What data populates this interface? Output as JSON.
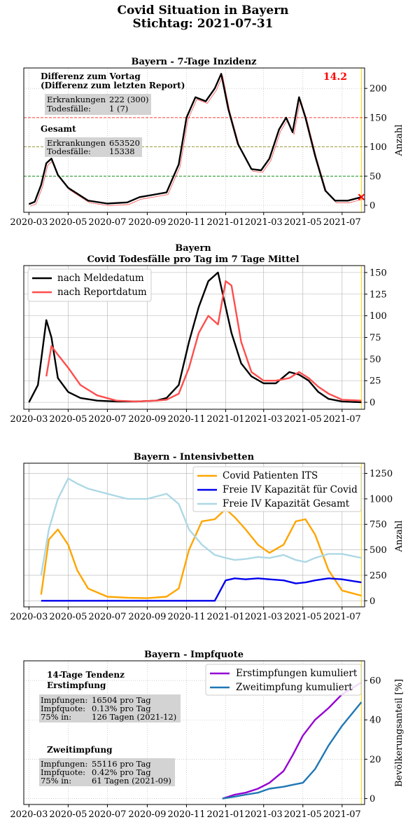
{
  "figure": {
    "title_line1": "Covid Situation in Bayern",
    "title_line2": "Stichtag: 2021-07-31"
  },
  "x_ticks": [
    "2020-03",
    "2020-05",
    "2020-07",
    "2020-09",
    "2020-11",
    "2021-01",
    "2021-03",
    "2021-05",
    "2021-07"
  ],
  "colors": {
    "black": "#000000",
    "red": "#ff4d4d",
    "orange": "#ffa500",
    "blue": "#0000ee",
    "lightblue": "#add8e6",
    "purple": "#9400d3",
    "steelblue": "#1f77b4",
    "marker_line": "#ffd700",
    "grid": "#b0b0b0",
    "annbox": "#d3d3d3"
  },
  "chart_data": [
    {
      "type": "line",
      "title": "Bayern - 7-Tage Inzidenz",
      "ylabel": "Anzahl",
      "ylim": [
        -12,
        235
      ],
      "yticks": [
        "0",
        "50",
        "100",
        "150",
        "200"
      ],
      "highlight_value": "14.2",
      "reference_lines": [
        {
          "y": 50,
          "color": "green",
          "style": "dashed"
        },
        {
          "y": 100,
          "color": "olive",
          "style": "dashed"
        },
        {
          "y": 150,
          "color": "red",
          "style": "dashed"
        }
      ],
      "x": [
        "2020-03-01",
        "2020-03-10",
        "2020-03-20",
        "2020-03-28",
        "2020-04-05",
        "2020-04-15",
        "2020-05-01",
        "2020-06-01",
        "2020-07-01",
        "2020-08-01",
        "2020-08-20",
        "2020-09-10",
        "2020-10-01",
        "2020-10-20",
        "2020-11-01",
        "2020-11-15",
        "2020-12-01",
        "2020-12-15",
        "2020-12-25",
        "2021-01-05",
        "2021-01-20",
        "2021-02-10",
        "2021-02-25",
        "2021-03-10",
        "2021-03-25",
        "2021-04-05",
        "2021-04-15",
        "2021-04-25",
        "2021-05-05",
        "2021-05-20",
        "2021-06-05",
        "2021-06-20",
        "2021-07-10",
        "2021-07-31"
      ],
      "series": [
        {
          "values": [
            2,
            6,
            35,
            72,
            80,
            52,
            30,
            8,
            3,
            5,
            14,
            18,
            22,
            70,
            150,
            185,
            178,
            200,
            225,
            165,
            105,
            62,
            60,
            80,
            130,
            150,
            125,
            185,
            150,
            85,
            25,
            8,
            8,
            14
          ]
        }
      ],
      "annotations": {
        "diff_title_1": "Differenz zum Vortag",
        "diff_title_2": "(Differenz zum letzten Report)",
        "diff_label_1": "Erkrankungen",
        "diff_value_1": "222 (300)",
        "diff_label_2": "Todesfälle:",
        "diff_value_2": "1 (7)",
        "total_title": "Gesamt",
        "total_label_1": "Erkrankungen",
        "total_value_1": "653520",
        "total_label_2": "Todesfälle:",
        "total_value_2": "15338"
      }
    },
    {
      "type": "line",
      "title_line1": "Bayern",
      "title_line2": "Covid Todesfälle pro Tag im 7 Tage Mittel",
      "ylim": [
        -8,
        158
      ],
      "yticks": [
        "0",
        "25",
        "50",
        "75",
        "100",
        "125",
        "150"
      ],
      "x": [
        "2020-03-01",
        "2020-03-15",
        "2020-03-28",
        "2020-04-05",
        "2020-04-15",
        "2020-05-01",
        "2020-05-20",
        "2020-06-15",
        "2020-07-15",
        "2020-08-15",
        "2020-09-15",
        "2020-10-01",
        "2020-10-20",
        "2020-11-05",
        "2020-11-20",
        "2020-12-05",
        "2020-12-20",
        "2021-01-01",
        "2021-01-10",
        "2021-01-25",
        "2021-02-10",
        "2021-03-01",
        "2021-03-20",
        "2021-04-10",
        "2021-04-25",
        "2021-05-10",
        "2021-05-25",
        "2021-06-10",
        "2021-07-01",
        "2021-07-31"
      ],
      "series": [
        {
          "name": "nach Meldedatum",
          "values": [
            0,
            20,
            95,
            75,
            28,
            12,
            5,
            2,
            1,
            1,
            2,
            5,
            20,
            70,
            110,
            140,
            150,
            110,
            80,
            45,
            30,
            22,
            22,
            35,
            32,
            25,
            12,
            4,
            1,
            0
          ]
        },
        {
          "name": "nach Reportdatum",
          "values": [
            null,
            null,
            30,
            65,
            55,
            40,
            20,
            8,
            2,
            1,
            2,
            3,
            10,
            40,
            80,
            100,
            90,
            140,
            135,
            70,
            35,
            25,
            25,
            28,
            35,
            28,
            18,
            10,
            3,
            2
          ]
        }
      ]
    },
    {
      "type": "line",
      "title": "Bayern - Intensivbetten",
      "ylabel": "Anzahl",
      "ylim": [
        -60,
        1350
      ],
      "yticks": [
        "0",
        "250",
        "500",
        "750",
        "1000",
        "1250"
      ],
      "x": [
        "2020-03-20",
        "2020-04-01",
        "2020-04-15",
        "2020-05-01",
        "2020-05-15",
        "2020-06-01",
        "2020-07-01",
        "2020-08-01",
        "2020-09-01",
        "2020-10-01",
        "2020-10-20",
        "2020-11-05",
        "2020-11-25",
        "2020-12-15",
        "2021-01-01",
        "2021-01-15",
        "2021-02-01",
        "2021-02-20",
        "2021-03-10",
        "2021-04-01",
        "2021-04-20",
        "2021-05-05",
        "2021-05-20",
        "2021-06-10",
        "2021-07-01",
        "2021-07-31"
      ],
      "series": [
        {
          "name": "Covid Patienten ITS",
          "values": [
            60,
            600,
            700,
            550,
            300,
            120,
            40,
            30,
            25,
            40,
            120,
            500,
            780,
            800,
            900,
            820,
            700,
            550,
            470,
            550,
            780,
            800,
            650,
            300,
            100,
            50
          ]
        },
        {
          "name": "Freie IV Kapazität für Covid",
          "values": [
            0,
            0,
            0,
            0,
            0,
            0,
            0,
            0,
            0,
            0,
            0,
            0,
            0,
            0,
            200,
            220,
            210,
            220,
            210,
            200,
            170,
            180,
            200,
            220,
            210,
            180
          ]
        },
        {
          "name": "Freie IV Kapazität Gesamt",
          "values": [
            250,
            700,
            1000,
            1200,
            1150,
            1100,
            1050,
            1000,
            1000,
            1050,
            950,
            700,
            550,
            450,
            420,
            400,
            410,
            430,
            420,
            450,
            400,
            380,
            420,
            460,
            460,
            420
          ]
        }
      ]
    },
    {
      "type": "line",
      "title": "Bayern - Impfquote",
      "ylabel": "Bevölkerungsanteil [%]",
      "ylim": [
        -3,
        70
      ],
      "yticks": [
        "0",
        "20",
        "40",
        "60"
      ],
      "x": [
        "2020-12-27",
        "2021-01-15",
        "2021-02-01",
        "2021-02-20",
        "2021-03-10",
        "2021-04-01",
        "2021-04-15",
        "2021-05-01",
        "2021-05-20",
        "2021-06-10",
        "2021-07-01",
        "2021-07-31"
      ],
      "series": [
        {
          "name": "Erstimpfungen kumuliert",
          "values": [
            0,
            2,
            3,
            5,
            8,
            14,
            22,
            32,
            40,
            46,
            53,
            59
          ]
        },
        {
          "name": "Zweitimpfung kumuliert",
          "values": [
            0,
            1,
            2,
            3,
            5,
            6,
            7,
            8,
            15,
            27,
            37,
            49
          ]
        }
      ],
      "annotations": {
        "first_title_1": "14-Tage Tendenz",
        "first_title_2": "Erstimpfung",
        "first_l1": "Impfungen:",
        "first_v1": "16504 pro Tag",
        "first_l2": "Impfquote:",
        "first_v2": "0.13% pro Tag",
        "first_l3": "75% in:",
        "first_v3": "126 Tagen (2021-12)",
        "second_title": "Zweitimpfung",
        "second_l1": "Impfungen:",
        "second_v1": "55116 pro Tag",
        "second_l2": "Impfquote:",
        "second_v2": "0.42% pro Tag",
        "second_l3": "75% in:",
        "second_v3": "61 Tagen (2021-09)"
      }
    }
  ]
}
